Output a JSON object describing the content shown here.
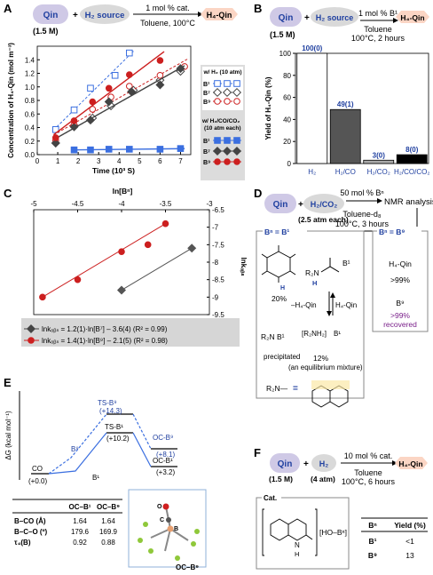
{
  "panels": {
    "A": "A",
    "B": "B",
    "C": "C",
    "D": "D",
    "E": "E",
    "F": "F"
  },
  "A": {
    "qin": "Qin",
    "plus": "+",
    "h2_source": "H₂ source",
    "arrow_top": "1 mol % cat.",
    "arrow_bottom": "Toluene, 100°C",
    "product": "H₄-Qin",
    "conc": "(1.5 M)",
    "legend_h2_title": "w/ H₂ (10 atm)",
    "legend_mix_title_1": "w/ H₂/CO/CO₂",
    "legend_mix_title_2": "(10 atm each)",
    "legend_b1": "B¹",
    "legend_b7": "B⁷",
    "legend_b9": "B⁹",
    "colors": {
      "blue": "#3b6fe0",
      "black": "#444444",
      "red": "#cc1f1f"
    }
  },
  "chart_data": [
    {
      "type": "scatter",
      "xlabel": "Time (10³ S)",
      "ylabel": "Concentration of H₄-Qin (mol m⁻³)",
      "xlim": [
        0,
        7.5
      ],
      "ylim": [
        0,
        1.6
      ],
      "xticks": [
        "0",
        "1",
        "2",
        "3",
        "4",
        "5",
        "6",
        "7"
      ],
      "yticks": [
        "0.0",
        "0.2",
        "0.4",
        "0.6",
        "0.8",
        "1.0",
        "1.2",
        "1.4"
      ],
      "series": [
        {
          "name": "B¹ w/ H₂",
          "x": [
            0.9,
            1.8,
            2.6,
            3.8,
            4.5
          ],
          "y": [
            0.37,
            0.66,
            0.98,
            1.17,
            1.5
          ]
        },
        {
          "name": "B⁷ w/ H₂",
          "x": [
            0.9,
            1.8,
            2.7,
            3.6,
            4.7,
            6.0,
            7.0
          ],
          "y": [
            0.17,
            0.43,
            0.54,
            0.72,
            0.95,
            1.1,
            1.23
          ]
        },
        {
          "name": "B⁹ w/ H₂",
          "x": [
            0.9,
            1.8,
            2.7,
            3.6,
            4.5,
            6.0,
            7.2
          ],
          "y": [
            0.21,
            0.44,
            0.67,
            0.85,
            1.01,
            1.17,
            1.3
          ]
        },
        {
          "name": "B¹ w/ H₂/CO/CO₂",
          "x": [
            1.8,
            2.6,
            3.5,
            4.5,
            6.0,
            7.0
          ],
          "y": [
            0.07,
            0.07,
            0.08,
            0.08,
            0.08,
            0.09
          ]
        },
        {
          "name": "B⁷ w/ H₂/CO/CO₂",
          "x": [
            0.9,
            1.8,
            2.6,
            3.5,
            4.6,
            6.0,
            7.0
          ],
          "y": [
            0.17,
            0.41,
            0.51,
            0.78,
            0.93,
            1.03,
            1.27
          ]
        },
        {
          "name": "B⁹ w/ H₂/CO/CO₂",
          "x": [
            0.9,
            1.8,
            2.7,
            3.5,
            4.5,
            6.0
          ],
          "y": [
            0.25,
            0.5,
            0.78,
            0.98,
            1.18,
            1.39
          ]
        }
      ]
    },
    {
      "type": "bar",
      "ylabel": "Yield of H₄-Qin (%)",
      "ylim": [
        0,
        100
      ],
      "yticks": [
        "0",
        "20",
        "40",
        "60",
        "80",
        "100"
      ],
      "categories": [
        "H₂",
        "H₂/CO",
        "H₂/CO₂",
        "H₂/CO/CO₂"
      ],
      "values": [
        100,
        49,
        3,
        8
      ],
      "labels": [
        "100(0)",
        "49(1)",
        "3(0)",
        "8(0)"
      ],
      "colors": [
        "#ffffff",
        "#555555",
        "#aaaaaa",
        "#000000"
      ]
    },
    {
      "type": "scatter",
      "xlabel": "ln[Bⁿ]",
      "ylabel": "lnkₒᵦₛ",
      "xlim": [
        -5,
        -3
      ],
      "ylim": [
        -9.5,
        -6.5
      ],
      "xticks": [
        "-5",
        "-4.5",
        "-4",
        "-3.5",
        "-3"
      ],
      "yticks": [
        "-6.5",
        "-7",
        "-7.5",
        "-8",
        "-8.5",
        "-9",
        "-9.5"
      ],
      "series": [
        {
          "name": "B⁷",
          "x": [
            -4,
            -3.2
          ],
          "y": [
            -8.8,
            -7.6
          ]
        },
        {
          "name": "B⁹",
          "x": [
            -4.9,
            -4.5,
            -4.0,
            -3.7,
            -3.5
          ],
          "y": [
            -9.0,
            -8.5,
            -7.7,
            -7.5,
            -6.9
          ]
        }
      ]
    }
  ],
  "B": {
    "qin": "Qin",
    "plus": "+",
    "h2_source": "H₂ source",
    "arrow_top": "1 mol % B¹",
    "arrow_bottom_1": "Toluene",
    "arrow_bottom_2": "100°C, 2 hours",
    "product": "H₄-Qin",
    "conc": "(1.5 M)"
  },
  "C": {
    "eq_b7": "lnkₒᵦₛ = 1.2(1)·ln[B⁷] – 3.6(4) (R² = 0.99)",
    "eq_b9": "lnkₒᵦₛ = 1.4(1)·ln[B⁹] – 2.1(5) (R² = 0.98)"
  },
  "D": {
    "qin": "Qin",
    "plus": "+",
    "gas": "H₂/CO₂",
    "gas_note": "(2.5 atm each)",
    "arrow_top": "50 mol % Bⁿ",
    "arrow_bottom_1": "Toluene-d₈",
    "arrow_bottom_2": "100°C, 3 hours",
    "target": "NMR analysis",
    "bn_b1": "Bⁿ = B¹",
    "bn_b9": "Bⁿ = B⁹",
    "pct20": "20%",
    "minus": "–H₄-Qin",
    "h4": "H₄-Qin",
    "precip": "precipitated",
    "pct12": "12%",
    "equil": "(an equilibrium mixture)",
    "right_h4": "H₄-Qin",
    "right_99": ">99%",
    "right_b9": "B⁹",
    "right_rec1": ">99%",
    "right_rec2": "recovered",
    "r2n": "R₂N",
    "rn": "R₂N",
    "rnh": "H",
    "b1": "B¹",
    "r2nh2": "[R₂NH₂]",
    "r2n_eq": "R₂N—",
    "eq": "="
  },
  "E": {
    "ylabel": "ΔG (kcal mol⁻¹)",
    "ts9": "TS-B⁹",
    "ts9v": "(+14.3)",
    "ts1": "TS-B¹",
    "ts1v": "(+10.2)",
    "oc9": "OC-B⁹",
    "oc9v": "(+8.1)",
    "oc1": "OC-B¹",
    "oc1v": "(+3.2)",
    "co": "CO",
    "cov": "(+0.0)",
    "b9": "B⁹",
    "b1": "B¹",
    "table_headers": [
      "",
      "OC–B¹",
      "OC–B⁹"
    ],
    "table_rows": [
      [
        "B–CO (Å)",
        "1.64",
        "1.64"
      ],
      [
        "B–C–O (º)",
        "179.6",
        "169.9"
      ],
      [
        "τ₄(B)",
        "0.92",
        "0.88"
      ]
    ],
    "mol_label": "OC–B⁹",
    "atom_o": "O",
    "atom_c": "C",
    "atom_b": "B"
  },
  "F": {
    "qin": "Qin",
    "conc": "(1.5 M)",
    "plus": "+",
    "h2": "H₂",
    "h2p": "(4 atm)",
    "arrow_top": "10 mol % cat.",
    "arrow_bottom_1": "Toluene",
    "arrow_bottom_2": "100°C, 6 hours",
    "product": "H₄-Qin",
    "cat": "Cat.",
    "nh": "N",
    "h": "H",
    "hob": "[HO–Bⁿ]",
    "headers": [
      "Bⁿ",
      "Yield (%)"
    ],
    "rows": [
      [
        "B¹",
        "<1"
      ],
      [
        "B⁹",
        "13"
      ]
    ]
  }
}
